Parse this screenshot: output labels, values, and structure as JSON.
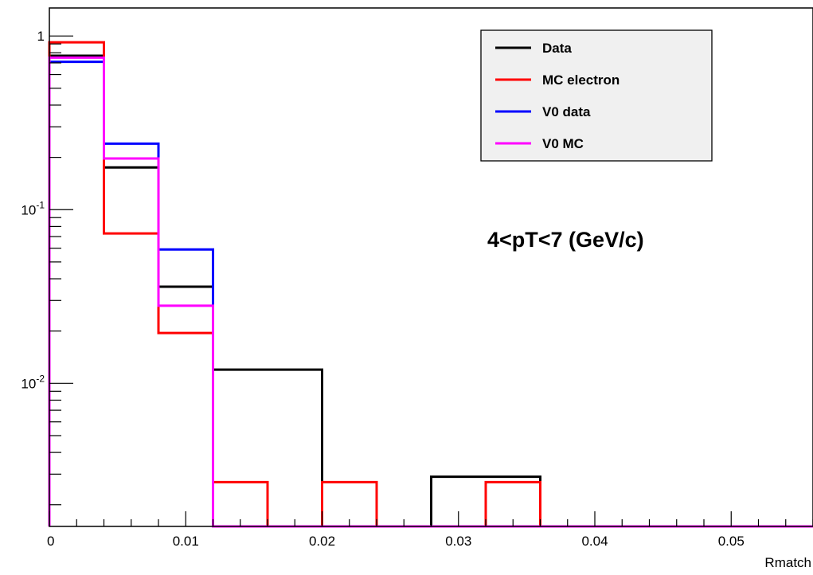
{
  "chart_data": {
    "type": "step-histogram",
    "xlabel": "Rmatch",
    "ylabel": "",
    "xlim": [
      0,
      0.056
    ],
    "ylim": [
      0.0015,
      1.45
    ],
    "yscale": "log",
    "grid": false,
    "legend_position": "top-right",
    "x_ticks": [
      {
        "value": 0,
        "label": "0"
      },
      {
        "value": 0.01,
        "label": "0.01"
      },
      {
        "value": 0.02,
        "label": "0.02"
      },
      {
        "value": 0.03,
        "label": "0.03"
      },
      {
        "value": 0.04,
        "label": "0.04"
      },
      {
        "value": 0.05,
        "label": "0.05"
      }
    ],
    "y_ticks": [
      {
        "value": 1,
        "base": "1",
        "exp": ""
      },
      {
        "value": 0.1,
        "base": "10",
        "exp": "-1"
      },
      {
        "value": 0.01,
        "base": "10",
        "exp": "-2"
      }
    ],
    "bin_edges": [
      0,
      0.004,
      0.008,
      0.012,
      0.016,
      0.02,
      0.024,
      0.028,
      0.032,
      0.036,
      0.04,
      0.044,
      0.048,
      0.052,
      0.056
    ],
    "series": [
      {
        "name": "Data",
        "color": "#000000",
        "values": [
          0.77,
          0.175,
          0.036,
          0.012,
          0.012,
          0,
          0,
          0.0029,
          0.0029,
          0,
          0,
          0,
          0,
          0
        ]
      },
      {
        "name": "MC electron",
        "color": "#ff0000",
        "values": [
          0.92,
          0.073,
          0.0195,
          0.0027,
          0,
          0.0027,
          0,
          0,
          0.0027,
          0,
          0,
          0,
          0,
          0
        ]
      },
      {
        "name": "V0 data",
        "color": "#0000ff",
        "values": [
          0.71,
          0.24,
          0.059,
          0,
          0,
          0,
          0,
          0,
          0,
          0,
          0,
          0,
          0,
          0
        ]
      },
      {
        "name": "V0 MC",
        "color": "#ff00ff",
        "values": [
          0.75,
          0.197,
          0.028,
          0,
          0,
          0,
          0,
          0,
          0,
          0,
          0,
          0,
          0,
          0
        ]
      }
    ],
    "annotations": [
      "4<pT<7 (GeV/c)"
    ]
  }
}
